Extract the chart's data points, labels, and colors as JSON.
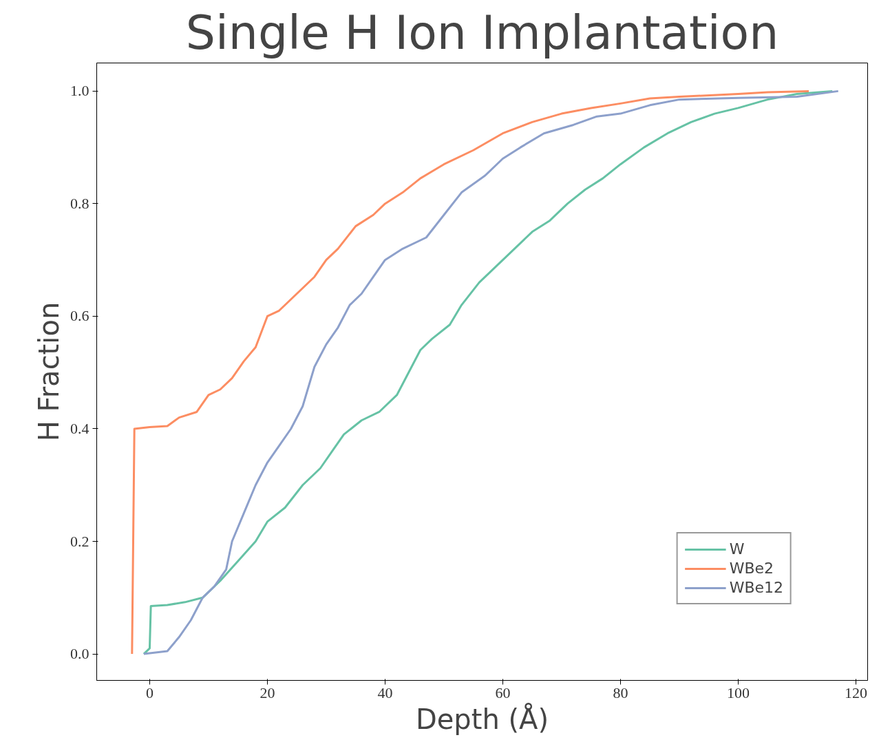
{
  "chart_data": {
    "type": "line",
    "title": "Single H Ion Implantation",
    "xlabel": "Depth (Å)",
    "ylabel": "H Fraction",
    "xlim": [
      -9,
      122
    ],
    "ylim": [
      -0.047,
      1.05
    ],
    "xticks": [
      0,
      20,
      40,
      60,
      80,
      100,
      120
    ],
    "yticks": [
      {
        "value": 0,
        "label": "0.0"
      },
      {
        "value": 0.2,
        "label": "0.2"
      },
      {
        "value": 0.4,
        "label": "0.4"
      },
      {
        "value": 0.6,
        "label": "0.6"
      },
      {
        "value": 0.8,
        "label": "0.8"
      },
      {
        "value": 1.0,
        "label": "1.0"
      }
    ],
    "grid": false,
    "legend": "bottom right",
    "marker": "none",
    "line_style": "solid",
    "series": [
      {
        "name": "W",
        "color": "#66c2a5",
        "x": [
          -1,
          0,
          0.2,
          3,
          6,
          9,
          12,
          15,
          18,
          20,
          23,
          26,
          29,
          31,
          33,
          36,
          39,
          42,
          44,
          46,
          48,
          51,
          53,
          56,
          59,
          62,
          65,
          68,
          71,
          74,
          77,
          80,
          84,
          88,
          92,
          96,
          100,
          105,
          110,
          116
        ],
        "values": [
          0.0,
          0.01,
          0.085,
          0.087,
          0.092,
          0.1,
          0.13,
          0.165,
          0.2,
          0.235,
          0.26,
          0.3,
          0.33,
          0.36,
          0.39,
          0.415,
          0.43,
          0.46,
          0.5,
          0.54,
          0.56,
          0.585,
          0.62,
          0.66,
          0.69,
          0.72,
          0.75,
          0.77,
          0.8,
          0.825,
          0.845,
          0.87,
          0.9,
          0.925,
          0.945,
          0.96,
          0.97,
          0.985,
          0.995,
          1.0
        ]
      },
      {
        "name": "WBe2",
        "color": "#fc8d62",
        "x": [
          -3,
          -2.6,
          0,
          3,
          5,
          8,
          10,
          12,
          14,
          16,
          18,
          20,
          22,
          25,
          28,
          30,
          32,
          35,
          38,
          40,
          43,
          46,
          50,
          55,
          60,
          65,
          70,
          75,
          80,
          85,
          90,
          100,
          105,
          112
        ],
        "values": [
          0.0,
          0.4,
          0.403,
          0.405,
          0.42,
          0.43,
          0.46,
          0.47,
          0.49,
          0.52,
          0.545,
          0.6,
          0.61,
          0.64,
          0.67,
          0.7,
          0.72,
          0.76,
          0.78,
          0.8,
          0.82,
          0.845,
          0.87,
          0.895,
          0.925,
          0.945,
          0.96,
          0.97,
          0.978,
          0.987,
          0.99,
          0.995,
          0.998,
          1.0
        ]
      },
      {
        "name": "WBe12",
        "color": "#8da0cb",
        "x": [
          -1,
          3,
          5,
          7,
          9,
          11,
          13,
          14,
          16,
          18,
          20,
          22,
          24,
          26,
          28,
          30,
          32,
          34,
          36,
          38,
          40,
          43,
          47,
          50,
          53,
          57,
          60,
          63,
          67,
          72,
          76,
          80,
          85,
          90,
          100,
          110,
          117
        ],
        "values": [
          0.0,
          0.005,
          0.03,
          0.06,
          0.1,
          0.12,
          0.15,
          0.2,
          0.25,
          0.3,
          0.34,
          0.37,
          0.4,
          0.44,
          0.51,
          0.55,
          0.58,
          0.62,
          0.64,
          0.67,
          0.7,
          0.72,
          0.74,
          0.78,
          0.82,
          0.85,
          0.88,
          0.9,
          0.925,
          0.94,
          0.955,
          0.96,
          0.975,
          0.985,
          0.988,
          0.99,
          1.0
        ]
      }
    ]
  }
}
